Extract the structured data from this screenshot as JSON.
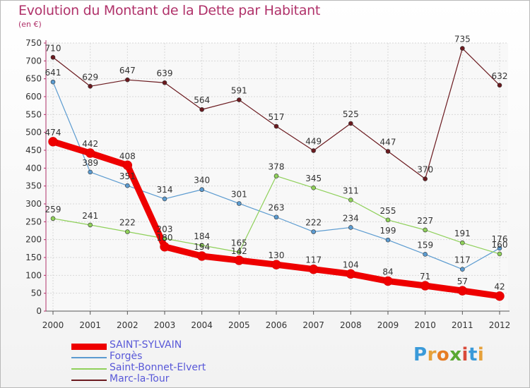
{
  "title": "Evolution du Montant de la Dette par Habitant",
  "subtitle": "(en €)",
  "logo": {
    "letters": [
      "P",
      "r",
      "o",
      "x",
      "i",
      "t",
      "i"
    ],
    "colors": [
      "#3a9ad9",
      "#e6a13a",
      "#e67c24",
      "#5aa832",
      "#d94a3a",
      "#3a9ad9",
      "#e6a13a"
    ]
  },
  "chart_data": {
    "type": "line",
    "x": [
      "2000",
      "2001",
      "2002",
      "2003",
      "2004",
      "2005",
      "2006",
      "2007",
      "2008",
      "2009",
      "2010",
      "2011",
      "2012"
    ],
    "ylim": [
      0,
      750
    ],
    "yticks": [
      "0",
      "50",
      "100",
      "150",
      "200",
      "250",
      "300",
      "350",
      "400",
      "450",
      "500",
      "550",
      "600",
      "650",
      "700",
      "750"
    ],
    "grid": true,
    "legend_position": "bottom-left",
    "series": [
      {
        "name": "Marc-la-Tour",
        "color": "#6b1a1f",
        "values": [
          710,
          629,
          647,
          639,
          564,
          591,
          517,
          449,
          525,
          447,
          370,
          735,
          632
        ],
        "labels": [
          "710",
          "629",
          "647",
          "639",
          "564",
          "591",
          "517",
          "449",
          "525",
          "447",
          "370",
          "735",
          "632"
        ]
      },
      {
        "name": "Forgès",
        "color": "#5b9bd0",
        "values": [
          641,
          389,
          351,
          314,
          340,
          301,
          263,
          222,
          234,
          199,
          159,
          117,
          176
        ],
        "labels": [
          "641",
          "389",
          "351",
          "314",
          "340",
          "301",
          "263",
          "222",
          "234",
          "199",
          "159",
          "117",
          "176"
        ]
      },
      {
        "name": "Saint-Bonnet-Elvert",
        "color": "#8fd05a",
        "values": [
          259,
          241,
          222,
          203,
          184,
          165,
          378,
          345,
          311,
          255,
          227,
          191,
          160
        ],
        "labels": [
          "259",
          "241",
          "222",
          "203",
          "184",
          "165",
          "378",
          "345",
          "311",
          "255",
          "227",
          "191",
          "160"
        ]
      },
      {
        "name": "SAINT-SYLVAIN",
        "color": "#ee0000",
        "values": [
          474,
          442,
          408,
          180,
          154,
          142,
          130,
          117,
          104,
          84,
          71,
          57,
          42
        ],
        "labels": [
          "474",
          "442",
          "408",
          "180",
          "154",
          "142",
          "130",
          "117",
          "104",
          "84",
          "71",
          "57",
          "42"
        ]
      }
    ],
    "legend_order": [
      "SAINT-SYLVAIN",
      "Forgès",
      "Saint-Bonnet-Elvert",
      "Marc-la-Tour"
    ]
  }
}
